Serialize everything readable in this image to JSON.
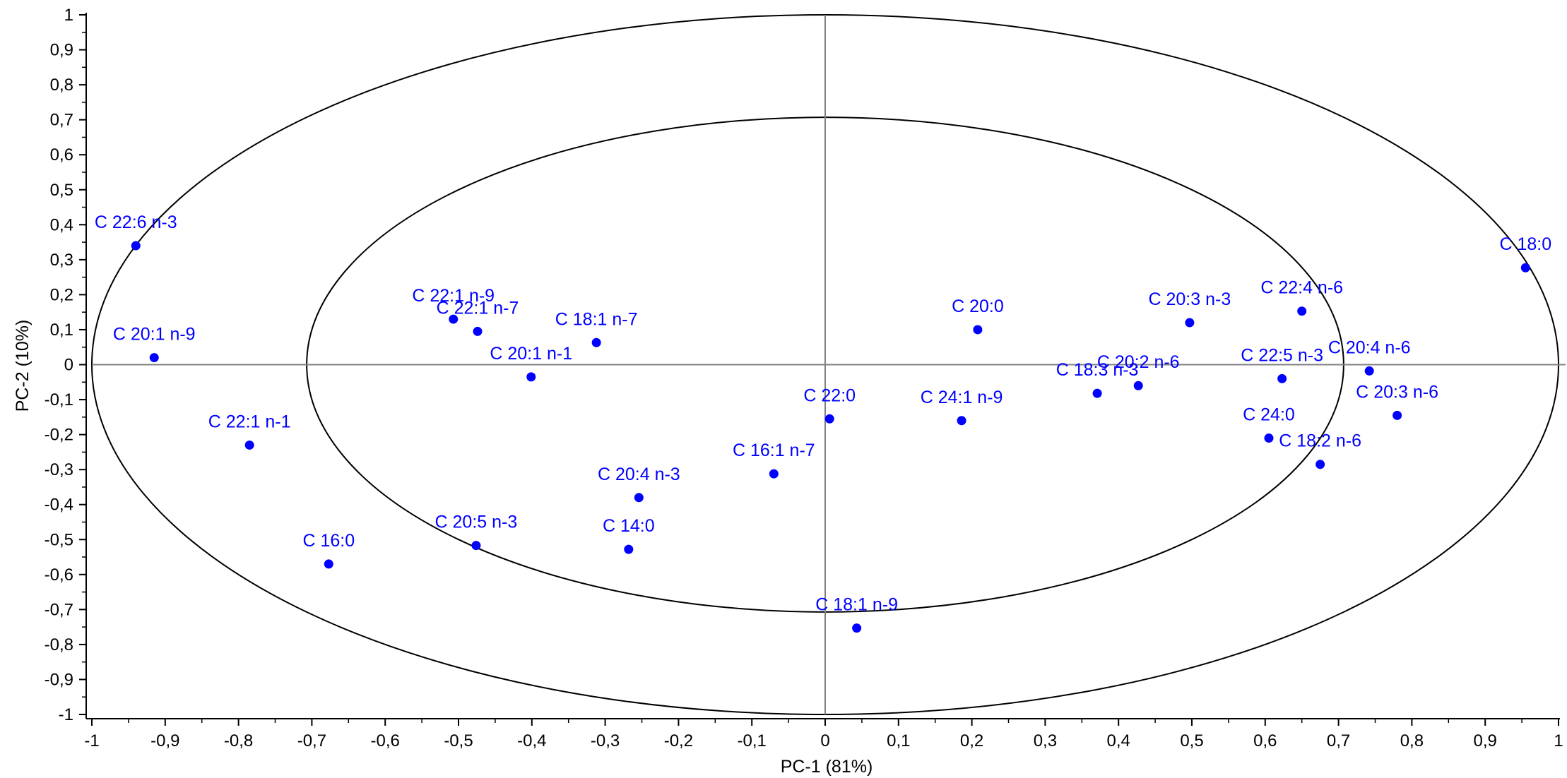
{
  "chart_data": {
    "type": "scatter",
    "title": "",
    "xlabel": "PC-1 (81%)",
    "ylabel": "PC-2 (10%)",
    "xlim": [
      -1,
      1
    ],
    "ylim": [
      -1,
      1
    ],
    "grid": false,
    "point_color": "#0000ff",
    "x_tick_labels": [
      "-1",
      "-0,9",
      "-0,8",
      "-0,7",
      "-0,6",
      "-0,5",
      "-0,4",
      "-0,3",
      "-0,2",
      "-0,1",
      "0",
      "0,1",
      "0,2",
      "0,3",
      "0,4",
      "0,5",
      "0,6",
      "0,7",
      "0,8",
      "0,9",
      "1"
    ],
    "y_tick_labels": [
      "-1",
      "-0,9",
      "-0,8",
      "-0,7",
      "-0,6",
      "-0,5",
      "-0,4",
      "-0,3",
      "-0,2",
      "-0,1",
      "0",
      "0,1",
      "0,2",
      "0,3",
      "0,4",
      "0,5",
      "0,6",
      "0,7",
      "0,8",
      "0,9",
      "1"
    ],
    "ellipses": [
      {
        "rx": 1.0,
        "ry": 1.0
      },
      {
        "rx": 0.707,
        "ry": 0.707
      }
    ],
    "points": [
      {
        "label": "C 22:6 n-3",
        "x": -0.94,
        "y": 0.34
      },
      {
        "label": "C 20:1 n-9",
        "x": -0.915,
        "y": 0.02
      },
      {
        "label": "C 22:1 n-1",
        "x": -0.785,
        "y": -0.23
      },
      {
        "label": "C 16:0",
        "x": -0.677,
        "y": -0.57
      },
      {
        "label": "C 22:1 n-9",
        "x": -0.507,
        "y": 0.13
      },
      {
        "label": "C 22:1 n-7",
        "x": -0.474,
        "y": 0.095
      },
      {
        "label": "C 20:5 n-3",
        "x": -0.476,
        "y": -0.517
      },
      {
        "label": "C 20:1 n-1",
        "x": -0.401,
        "y": -0.035
      },
      {
        "label": "C 18:1 n-7",
        "x": -0.312,
        "y": 0.063
      },
      {
        "label": "C 14:0",
        "x": -0.268,
        "y": -0.528
      },
      {
        "label": "C 20:4 n-3",
        "x": -0.254,
        "y": -0.38
      },
      {
        "label": "C 16:1 n-7",
        "x": -0.07,
        "y": -0.312
      },
      {
        "label": "C 22:0",
        "x": 0.006,
        "y": -0.155
      },
      {
        "label": "C 18:1 n-9",
        "x": 0.043,
        "y": -0.753
      },
      {
        "label": "C 24:1 n-9",
        "x": 0.186,
        "y": -0.16
      },
      {
        "label": "C 20:0",
        "x": 0.208,
        "y": 0.1
      },
      {
        "label": "C 18:3 n-3",
        "x": 0.371,
        "y": -0.082
      },
      {
        "label": "C 20:2 n-6",
        "x": 0.427,
        "y": -0.06
      },
      {
        "label": "C 20:3 n-3",
        "x": 0.497,
        "y": 0.12
      },
      {
        "label": "C 24:0",
        "x": 0.605,
        "y": -0.21
      },
      {
        "label": "C 22:5 n-3",
        "x": 0.623,
        "y": -0.04
      },
      {
        "label": "C 22:4 n-6",
        "x": 0.65,
        "y": 0.153
      },
      {
        "label": "C 18:2 n-6",
        "x": 0.675,
        "y": -0.285
      },
      {
        "label": "C 20:4 n-6",
        "x": 0.742,
        "y": -0.018
      },
      {
        "label": "C 20:3 n-6",
        "x": 0.78,
        "y": -0.145
      },
      {
        "label": "C 18:0",
        "x": 0.955,
        "y": 0.277
      }
    ]
  }
}
